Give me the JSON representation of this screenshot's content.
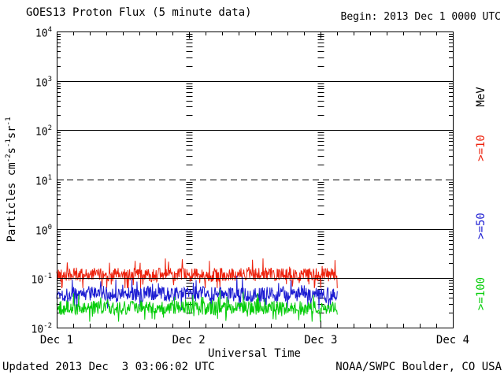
{
  "header": {
    "title": "GOES13 Proton Flux (5 minute data)",
    "begin_label": "Begin: 2013 Dec 1 0000 UTC"
  },
  "footer": {
    "updated": "Updated 2013 Dec  3 03:06:02 UTC",
    "source": "NOAA/SWPC Boulder, CO USA"
  },
  "chart_data": {
    "type": "line",
    "title": "GOES13 Proton Flux (5 minute data)",
    "begin": "2013 Dec 1 0000 UTC",
    "updated": "2013 Dec 3 03:06:02 UTC",
    "xlabel": "Universal Time",
    "ylabel": "Particles cm-2s-1sr-1",
    "ylabel_parts": [
      [
        "t",
        "Particles cm"
      ],
      [
        "sup",
        "-2"
      ],
      [
        "t",
        "s"
      ],
      [
        "sup",
        "-1"
      ],
      [
        "t",
        "sr"
      ],
      [
        "sup",
        "-1"
      ]
    ],
    "right_axis_label": "MeV",
    "x_axis": {
      "range_days": [
        0,
        3
      ],
      "tick_days": [
        0,
        1,
        2,
        3
      ],
      "tick_labels": [
        "Dec 1",
        "Dec 2",
        "Dec 3",
        "Dec 4"
      ],
      "minor_tick_hours": 3
    },
    "y_axis": {
      "scale": "log",
      "exp_range": [
        -2,
        4
      ],
      "tick_exponents": [
        4,
        3,
        2,
        1,
        0,
        -1,
        -2
      ],
      "solid_gridline_exponents": [
        3,
        2,
        0,
        -1
      ],
      "dashed_gridline_exponents": [
        1
      ],
      "interior_tick_column_days": [
        1,
        2
      ]
    },
    "grid": "log decade lines, dashed event threshold at 10",
    "legend_position": "right-rotated",
    "data_start_day": 0,
    "data_end_day": 2.13,
    "cadence_minutes": 5,
    "series": [
      {
        "label": ">=10",
        "energy": ">=10 MeV",
        "color": "#ed220d",
        "approx_flux_mean": 0.12,
        "approx_flux_range": [
          0.07,
          0.3
        ],
        "baseline_log10": -0.93,
        "noise_log10": 0.14,
        "spike_log10": 0.3,
        "spike_prob": 0.15,
        "clip_log10": [
          -1.2,
          -0.55
        ],
        "seed": 42
      },
      {
        "label": ">=50",
        "energy": ">=50 MeV",
        "color": "#1d1dd2",
        "approx_flux_mean": 0.05,
        "approx_flux_range": [
          0.025,
          0.1
        ],
        "baseline_log10": -1.32,
        "noise_log10": 0.15,
        "spike_log10": 0.3,
        "spike_prob": 0.15,
        "clip_log10": [
          -1.65,
          -0.85
        ],
        "seed": 1337
      },
      {
        "label": ">=100",
        "energy": ">=100 MeV",
        "color": "#05cd09",
        "approx_flux_mean": 0.025,
        "approx_flux_range": [
          0.013,
          0.05
        ],
        "baseline_log10": -1.6,
        "noise_log10": 0.14,
        "spike_log10": 0.25,
        "spike_prob": 0.15,
        "clip_log10": [
          -1.88,
          -1.2
        ],
        "seed": 2024
      }
    ]
  }
}
